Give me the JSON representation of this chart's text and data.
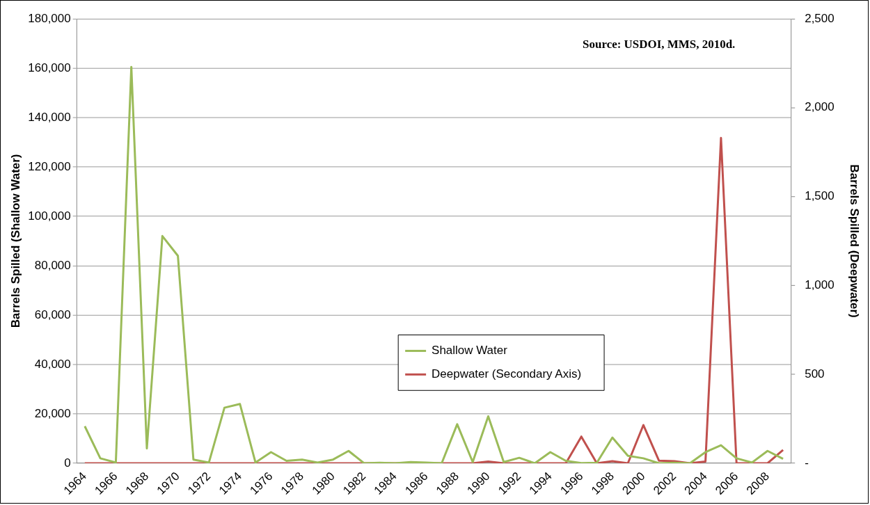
{
  "chart_data": {
    "type": "line",
    "ylabel": "Barrels Spilled (Shallow Water)",
    "y2label": "Barrels Spilled (Deepwater)",
    "annotations": [
      "Source: USDOI, MMS, 2010d."
    ],
    "categories": [
      "1964",
      null,
      "1966",
      null,
      "1968",
      null,
      "1970",
      null,
      "1972",
      null,
      "1974",
      null,
      "1976",
      null,
      "1978",
      null,
      "1980",
      null,
      "1982",
      null,
      "1984",
      null,
      "1986",
      null,
      "1988",
      null,
      "1990",
      null,
      "1992",
      null,
      "1994",
      null,
      "1996",
      null,
      "1998",
      null,
      "2000",
      null,
      "2002",
      null,
      "2004",
      null,
      "2006",
      null,
      "2008",
      null
    ],
    "series": [
      {
        "name": "Shallow Water",
        "color": "#9bbb59",
        "values": [
          15000,
          2000,
          300,
          160500,
          6000,
          92000,
          84000,
          1500,
          300,
          22500,
          24000,
          300,
          4500,
          1000,
          1500,
          300,
          1500,
          5000,
          0,
          200,
          0,
          500,
          300,
          0,
          15800,
          500,
          19000,
          500,
          2200,
          0,
          4500,
          1000,
          100,
          200,
          10400,
          3000,
          2000,
          0,
          200,
          0,
          4500,
          7300,
          2000,
          300,
          5000,
          1800
        ]
      },
      {
        "name": "Deepwater (Secondary Axis)",
        "color": "#c0504d",
        "axis": "y2",
        "values": [
          0,
          0,
          0,
          0,
          0,
          0,
          0,
          0,
          0,
          0,
          0,
          0,
          0,
          0,
          0,
          0,
          0,
          0,
          0,
          0,
          0,
          0,
          0,
          0,
          0,
          0,
          10,
          0,
          0,
          0,
          0,
          0,
          150,
          0,
          12,
          0,
          215,
          15,
          12,
          0,
          10,
          1830,
          0,
          0,
          0,
          75
        ]
      }
    ],
    "ylim": [
      0,
      180000
    ],
    "yticks": [
      0,
      {
        "value": 20000,
        "label": "20,000"
      },
      {
        "value": 40000,
        "label": "40,000"
      },
      {
        "value": 60000,
        "label": "60,000"
      },
      {
        "value": 80000,
        "label": "80,000"
      },
      {
        "value": 100000,
        "label": "100,000"
      },
      {
        "value": 120000,
        "label": "120,000"
      },
      {
        "value": 140000,
        "label": "140,000"
      },
      {
        "value": 160000,
        "label": "160,000"
      },
      {
        "value": 180000,
        "label": "180,000"
      }
    ],
    "y2lim": [
      0,
      2500
    ],
    "y2ticks": [
      {
        "value": 0,
        "label": "-"
      },
      500,
      {
        "value": 1000,
        "label": "1,000"
      },
      {
        "value": 1500,
        "label": "1,500"
      },
      {
        "value": 2000,
        "label": "2,000"
      },
      {
        "value": 2500,
        "label": "2,500"
      }
    ],
    "grid": "y",
    "legend": "bottom",
    "marker": "none",
    "line_style": "solid"
  }
}
